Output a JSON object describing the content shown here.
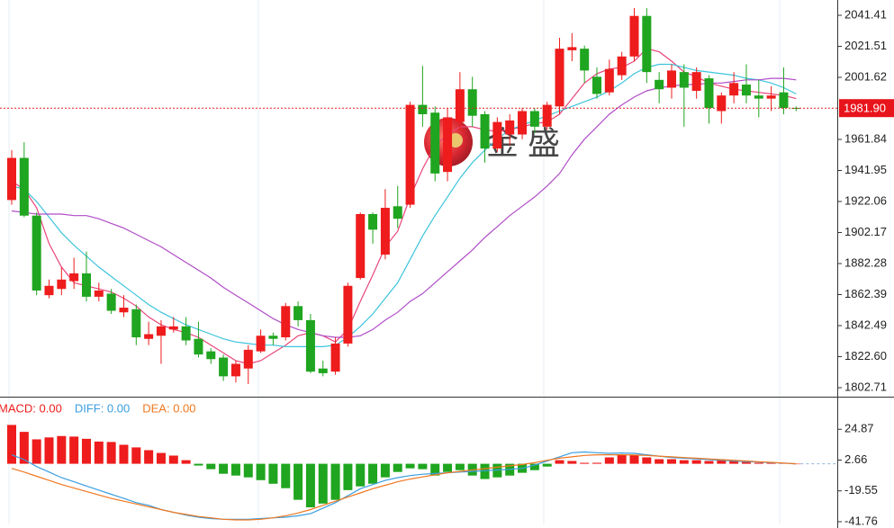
{
  "chart_data": [
    {
      "type": "candlestick",
      "open": [
        1923,
        1950,
        1913,
        1862,
        1866,
        1871,
        1876,
        1861,
        1863,
        1851,
        1853,
        1834,
        1836,
        1840,
        1842,
        1834,
        1826,
        1822,
        1810,
        1815,
        1826,
        1836,
        1835,
        1855,
        1846,
        1815,
        1813,
        1831,
        1873,
        1914,
        1888,
        1919,
        1920,
        1984,
        1979,
        1941,
        1973,
        1994,
        1978,
        1956,
        1965,
        1965,
        1980,
        1970,
        1983,
        2019,
        2020,
        2002,
        1992,
        2003,
        2015,
        2041,
        2000,
        1995,
        2005,
        1993,
        2001,
        1980,
        1990,
        1997,
        1990,
        1988,
        1992,
        1982
      ],
      "high": [
        1955,
        1960,
        1915,
        1872,
        1880,
        1886,
        1890,
        1870,
        1866,
        1862,
        1856,
        1845,
        1846,
        1848,
        1848,
        1845,
        1828,
        1824,
        1820,
        1830,
        1840,
        1838,
        1857,
        1858,
        1850,
        1820,
        1835,
        1870,
        1915,
        1915,
        1930,
        1932,
        1986,
        2009,
        1983,
        1982,
        2005,
        2002,
        1980,
        1976,
        1978,
        1982,
        1982,
        1986,
        2027,
        2030,
        2022,
        2008,
        2013,
        2018,
        2046,
        2046,
        2005,
        2010,
        2010,
        2008,
        2003,
        1992,
        2005,
        2010,
        2000,
        1996,
        2008,
        1983
      ],
      "low": [
        1920,
        1912,
        1862,
        1860,
        1862,
        1866,
        1858,
        1858,
        1850,
        1848,
        1830,
        1830,
        1818,
        1838,
        1830,
        1822,
        1818,
        1807,
        1806,
        1805,
        1825,
        1830,
        1833,
        1842,
        1812,
        1810,
        1811,
        1829,
        1872,
        1895,
        1885,
        1905,
        1918,
        1970,
        1935,
        1935,
        1968,
        1970,
        1947,
        1954,
        1958,
        1962,
        1966,
        1968,
        1978,
        2012,
        1998,
        1988,
        1990,
        2000,
        2012,
        1998,
        1985,
        1988,
        1970,
        1988,
        1972,
        1972,
        1985,
        1985,
        1976,
        1980,
        1978,
        1980
      ],
      "close": [
        1950,
        1913,
        1865,
        1868,
        1872,
        1876,
        1861,
        1865,
        1852,
        1854,
        1835,
        1837,
        1842,
        1842,
        1833,
        1824,
        1821,
        1810,
        1818,
        1827,
        1836,
        1834,
        1855,
        1846,
        1813,
        1812,
        1831,
        1868,
        1914,
        1904,
        1918,
        1911,
        1984,
        1978,
        1940,
        1976,
        1994,
        1977,
        1956,
        1973,
        1974,
        1980,
        1970,
        1984,
        2020,
        2021,
        2006,
        1991,
        2007,
        2015,
        2041,
        2005,
        1994,
        2006,
        1995,
        2005,
        1982,
        1990,
        1998,
        1990,
        1988,
        1990,
        1982,
        1981.9
      ],
      "up_color": "#ee1c1c",
      "down_color": "#1fa51f",
      "moving_averages": [
        {
          "color": "#e8457a",
          "values": [
            1935,
            1930,
            1918,
            1895,
            1880,
            1870,
            1868,
            1866,
            1864,
            1860,
            1855,
            1848,
            1843,
            1840,
            1838,
            1835,
            1830,
            1825,
            1820,
            1818,
            1820,
            1825,
            1830,
            1836,
            1838,
            1836,
            1832,
            1840,
            1858,
            1875,
            1893,
            1903,
            1925,
            1943,
            1958,
            1965,
            1970,
            1970,
            1968,
            1967,
            1968,
            1970,
            1972,
            1973,
            1978,
            1988,
            1998,
            2004,
            2007,
            2008,
            2012,
            2020,
            2018,
            2012,
            2005,
            2002,
            1998,
            1996,
            1994,
            1993,
            1992,
            1991,
            1990,
            1988
          ]
        },
        {
          "color": "#3cc4dc",
          "values": [
            1932,
            1930,
            1922,
            1912,
            1902,
            1894,
            1887,
            1880,
            1874,
            1868,
            1862,
            1856,
            1851,
            1847,
            1843,
            1840,
            1837,
            1834,
            1832,
            1831,
            1830,
            1830,
            1829,
            1829,
            1829,
            1829,
            1830,
            1835,
            1842,
            1850,
            1860,
            1870,
            1885,
            1900,
            1913,
            1925,
            1937,
            1947,
            1955,
            1962,
            1968,
            1971,
            1974,
            1977,
            1980,
            1983,
            1986,
            1989,
            1993,
            1998,
            2004,
            2008,
            2010,
            2010,
            2008,
            2006,
            2005,
            2004,
            2003,
            2001,
            2000,
            1998,
            1995,
            1991
          ]
        },
        {
          "color": "#b04cc8",
          "values": [
            1916,
            1915,
            1914,
            1914,
            1914,
            1913,
            1913,
            1911,
            1908,
            1905,
            1901,
            1897,
            1893,
            1888,
            1883,
            1878,
            1873,
            1867,
            1862,
            1857,
            1852,
            1847,
            1843,
            1840,
            1838,
            1836,
            1835,
            1835,
            1836,
            1840,
            1846,
            1851,
            1858,
            1863,
            1870,
            1877,
            1884,
            1891,
            1899,
            1906,
            1913,
            1919,
            1925,
            1932,
            1940,
            1952,
            1962,
            1970,
            1978,
            1984,
            1989,
            1993,
            1995,
            1996,
            1997,
            1997,
            1998,
            1998,
            1999,
            2000,
            2000,
            2001,
            2001,
            2000
          ]
        }
      ],
      "ylim": [
        1797.52,
        2051.21
      ],
      "yticks": [
        2041.41,
        2021.51,
        2001.62,
        1961.84,
        1941.95,
        1922.06,
        1902.17,
        1882.28,
        1862.39,
        1842.49,
        {
          "value": 1822.6,
          "label": "1822.60"
        },
        1802.71
      ],
      "last_price": {
        "value": 1981.9,
        "label": "1981.90"
      },
      "watermark": "金 盛"
    },
    {
      "type": "macd",
      "legend": [
        {
          "text": "MACD: 0.00",
          "color": "#ee1c1c"
        },
        {
          "text": "DIFF: 0.00",
          "color": "#3a9ee0"
        },
        {
          "text": "DEA: 0.00",
          "color": "#f07820"
        }
      ],
      "histogram": [
        28,
        23,
        17.6,
        19,
        20,
        19.6,
        18,
        16,
        15.7,
        13.7,
        11.8,
        9.8,
        7.8,
        5.9,
        2.6,
        -1.3,
        -3.9,
        -7.2,
        -8.5,
        -9.8,
        -11.8,
        -14.4,
        -17.6,
        -26,
        -31.4,
        -28.7,
        -26,
        -19,
        -16.3,
        -14.4,
        -9.8,
        -5.9,
        -3.3,
        -3.9,
        -8.5,
        -5.9,
        -4.6,
        -8.5,
        -11,
        -9.8,
        -8.5,
        -6.5,
        -4.6,
        -2,
        2.6,
        2,
        0.7,
        0.7,
        4.6,
        6.5,
        6.5,
        4.6,
        3.3,
        3.3,
        2.6,
        2.6,
        2,
        2.6,
        2,
        1.3,
        0.7,
        0.7,
        0.7,
        0
      ],
      "up_color": "#ee1c1c",
      "down_color": "#1fa51f",
      "series": [
        {
          "color": "#3a9ee0",
          "values": [
            6.5,
            3,
            -2,
            -6,
            -10,
            -13,
            -16,
            -19,
            -22,
            -25,
            -28,
            -30,
            -33,
            -35,
            -37,
            -38.5,
            -39.5,
            -40,
            -40,
            -40,
            -39.5,
            -39,
            -38.5,
            -37.5,
            -36,
            -32,
            -28,
            -23,
            -18,
            -15,
            -12,
            -10,
            -8.5,
            -7.5,
            -7,
            -6.5,
            -6,
            -5.5,
            -5,
            -4.5,
            -4,
            -3.3,
            -1,
            2,
            5,
            8,
            8.5,
            8,
            7.5,
            7.8,
            7.5,
            6.5,
            5.5,
            4.5,
            4,
            3.5,
            3,
            2.5,
            2,
            1.5,
            1.2,
            0.8,
            0.5,
            0
          ]
        },
        {
          "color": "#f07820",
          "values": [
            -3.3,
            -6,
            -9,
            -12,
            -15,
            -17.5,
            -20,
            -22.5,
            -25,
            -27,
            -29,
            -31,
            -33,
            -35,
            -36.5,
            -38,
            -39,
            -40,
            -40.5,
            -40.5,
            -40,
            -39,
            -37.5,
            -35.5,
            -33,
            -30,
            -27,
            -24,
            -21,
            -18,
            -15.5,
            -13,
            -11,
            -9.5,
            -8,
            -6.5,
            -5.5,
            -4.5,
            -3.5,
            -2.5,
            -1.5,
            -0.5,
            0.8,
            2.5,
            4,
            5,
            6,
            6.5,
            6.5,
            6.5,
            6.3,
            6,
            5.5,
            5,
            4.5,
            4,
            3.5,
            3,
            2.5,
            2,
            1.5,
            1,
            0.5,
            0
          ]
        }
      ],
      "ylim": [
        -43.72,
        47.08
      ],
      "yticks": [
        24.87,
        2.66,
        -19.55,
        -41.76
      ]
    }
  ]
}
